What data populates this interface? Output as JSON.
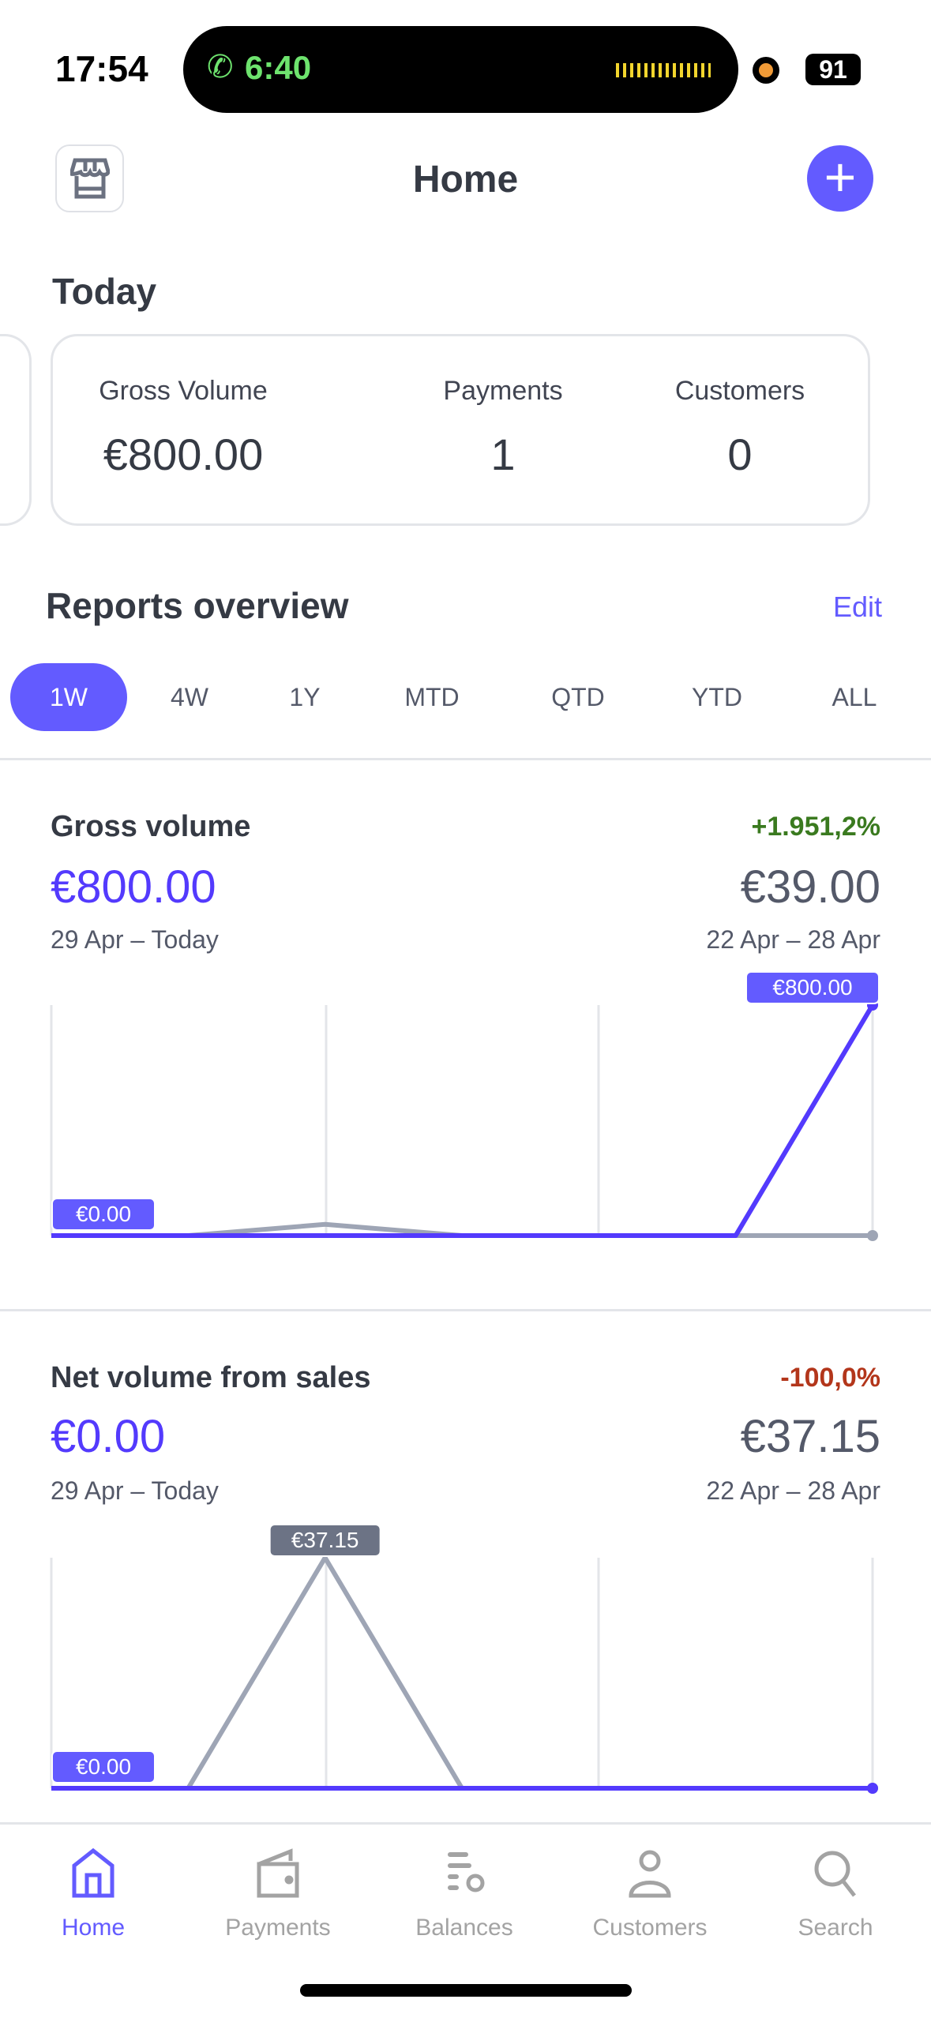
{
  "status_bar": {
    "time": "17:54",
    "call_time": "6:40",
    "battery": "91"
  },
  "header": {
    "title": "Home",
    "store_icon": "storefront-icon",
    "add_icon": "plus-icon"
  },
  "today": {
    "title": "Today",
    "stats": [
      {
        "label": "Gross Volume",
        "value": "€800.00"
      },
      {
        "label": "Payments",
        "value": "1"
      },
      {
        "label": "Customers",
        "value": "0"
      }
    ]
  },
  "reports": {
    "title": "Reports overview",
    "edit_label": "Edit",
    "ranges": [
      {
        "label": "1W",
        "active": true
      },
      {
        "label": "4W"
      },
      {
        "label": "1Y"
      },
      {
        "label": "MTD"
      },
      {
        "label": "QTD"
      },
      {
        "label": "YTD"
      },
      {
        "label": "ALL"
      }
    ]
  },
  "colors": {
    "accent": "#635bff",
    "current_line": "#533afd",
    "previous_line": "#9ea5b5",
    "positive": "#3a7a1f",
    "negative": "#b3361b"
  },
  "metrics": [
    {
      "title": "Gross volume",
      "change": "+1.951,2%",
      "change_type": "positive",
      "current": "€800.00",
      "current_range": "29 Apr – Today",
      "previous": "€39.00",
      "previous_range": "22 Apr – 28 Apr"
    },
    {
      "title": "Net volume from sales",
      "change": "-100,0%",
      "change_type": "negative",
      "current": "€0.00",
      "current_range": "29 Apr – Today",
      "previous": "€37.15",
      "previous_range": "22 Apr – 28 Apr"
    }
  ],
  "chart_data": [
    {
      "type": "line",
      "series": [
        {
          "values": [
            0,
            0,
            0,
            0,
            0,
            0,
            800
          ]
        },
        {
          "values": [
            0,
            0,
            39,
            0,
            0,
            0,
            0
          ]
        }
      ],
      "labels": {
        "min": "€0.00",
        "max": "€800.00"
      },
      "grid": true
    },
    {
      "type": "line",
      "series": [
        {
          "values": [
            0,
            0,
            0,
            0,
            0,
            0,
            0
          ]
        },
        {
          "values": [
            0,
            0,
            37.15,
            0,
            0,
            0,
            0
          ]
        }
      ],
      "labels": {
        "min": "€0.00",
        "max": "€37.15"
      },
      "grid": true
    }
  ],
  "tabbar": [
    {
      "label": "Home",
      "icon": "home-icon",
      "active": true
    },
    {
      "label": "Payments",
      "icon": "wallet-icon"
    },
    {
      "label": "Balances",
      "icon": "balances-icon"
    },
    {
      "label": "Customers",
      "icon": "person-icon"
    },
    {
      "label": "Search",
      "icon": "search-icon"
    }
  ]
}
